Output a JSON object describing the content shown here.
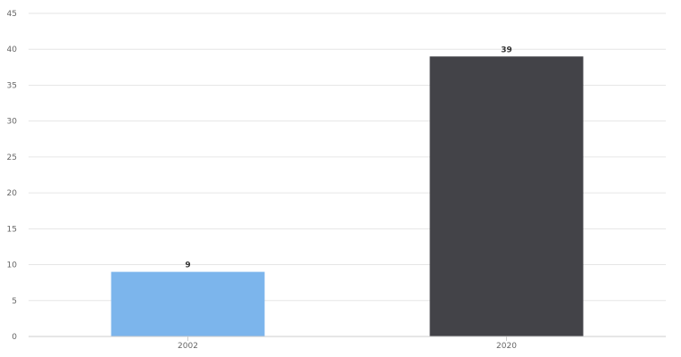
{
  "chart_data": {
    "type": "bar",
    "categories": [
      "2002",
      "2020"
    ],
    "values": [
      9,
      39
    ],
    "colors": [
      "#7cb5ec",
      "#434348"
    ],
    "title": "",
    "xlabel": "",
    "ylabel": "",
    "ylim": [
      0,
      45
    ],
    "y_ticks": [
      0,
      5,
      10,
      15,
      20,
      25,
      30,
      35,
      40,
      45
    ],
    "grid": true,
    "legend": "none",
    "data_labels": true
  }
}
